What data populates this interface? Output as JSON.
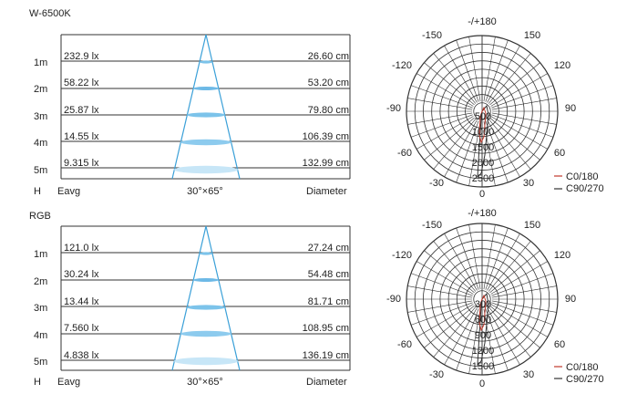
{
  "panels": [
    {
      "title": "W-6500K",
      "rows": [
        {
          "height": "1m",
          "eavg": "232.9 lx",
          "diameter": "26.60 cm"
        },
        {
          "height": "2m",
          "eavg": "58.22 lx",
          "diameter": "53.20 cm"
        },
        {
          "height": "3m",
          "eavg": "25.87 lx",
          "diameter": "79.80 cm"
        },
        {
          "height": "4m",
          "eavg": "14.55 lx",
          "diameter": "106.39 cm"
        },
        {
          "height": "5m",
          "eavg": "9.315 lx",
          "diameter": "132.99 cm"
        }
      ],
      "footer": {
        "h": "H",
        "eavg": "Eavg",
        "angle": "30°×65°",
        "diameter": "Diameter"
      },
      "polar": {
        "angles": [
          "-/+180",
          "-150",
          "150",
          "-120",
          "120",
          "-90",
          "90",
          "-60",
          "60",
          "-30",
          "30",
          "0"
        ],
        "rings": [
          "500",
          "1000",
          "1500",
          "2000",
          "2500"
        ],
        "legend": [
          {
            "label": "C0/180",
            "color": "#c0392b"
          },
          {
            "label": "C90/270",
            "color": "#333333"
          }
        ]
      }
    },
    {
      "title": "RGB",
      "rows": [
        {
          "height": "1m",
          "eavg": "121.0 lx",
          "diameter": "27.24 cm"
        },
        {
          "height": "2m",
          "eavg": "30.24 lx",
          "diameter": "54.48 cm"
        },
        {
          "height": "3m",
          "eavg": "13.44 lx",
          "diameter": "81.71 cm"
        },
        {
          "height": "4m",
          "eavg": "7.560 lx",
          "diameter": "108.95 cm"
        },
        {
          "height": "5m",
          "eavg": "4.838 lx",
          "diameter": "136.19 cm"
        }
      ],
      "footer": {
        "h": "H",
        "eavg": "Eavg",
        "angle": "30°×65°",
        "diameter": "Diameter"
      },
      "polar": {
        "angles": [
          "-/+180",
          "-150",
          "150",
          "-120",
          "120",
          "-90",
          "90",
          "-60",
          "60",
          "-30",
          "30",
          "0"
        ],
        "rings": [
          "300",
          "600",
          "900",
          "1200",
          "1500"
        ],
        "legend": [
          {
            "label": "C0/180",
            "color": "#c0392b"
          },
          {
            "label": "C90/270",
            "color": "#333333"
          }
        ]
      }
    }
  ]
}
